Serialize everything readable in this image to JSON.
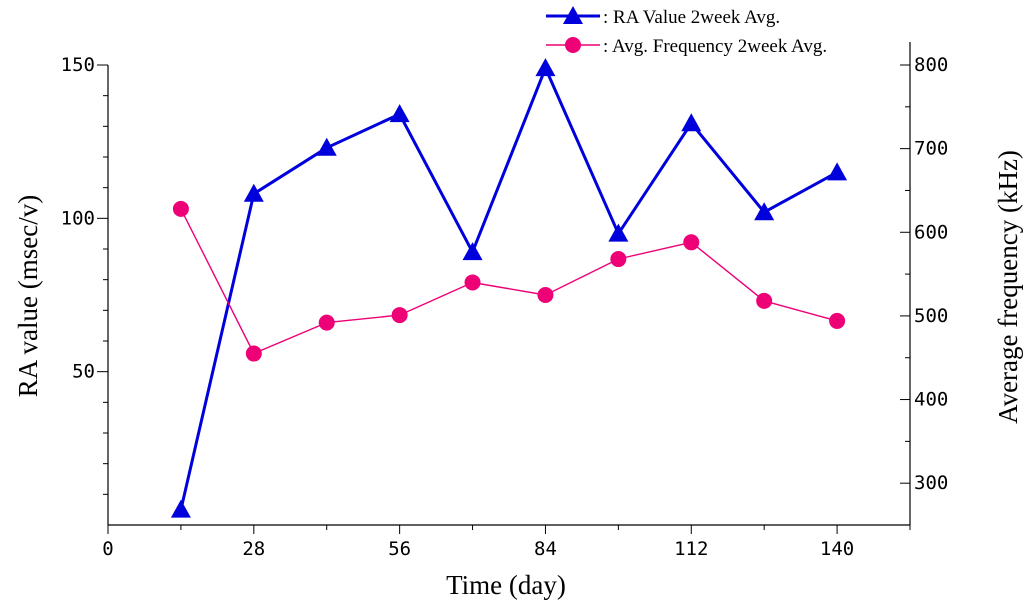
{
  "chart_data": {
    "type": "line",
    "x_label": "Time (day)",
    "y_left_label": "RA value (msec/v)",
    "y_right_label": "Average frequency (kHz)",
    "x_ticks": [
      "0",
      "28",
      "56",
      "84",
      "112",
      "140"
    ],
    "y_left_ticks": [
      "50",
      "100",
      "150"
    ],
    "y_right_ticks": [
      "300",
      "400",
      "500",
      "600",
      "700",
      "800"
    ],
    "xlim": [
      0,
      154
    ],
    "y_left_lim": [
      0,
      150
    ],
    "y_right_lim": [
      250,
      800
    ],
    "series": [
      {
        "name": ": RA Value 2week Avg.",
        "axis": "left",
        "marker": "triangle",
        "color": "#0000dd",
        "x": [
          14,
          28,
          42,
          56,
          70,
          84,
          98,
          112,
          126,
          140
        ],
        "y": [
          5,
          108,
          123,
          134,
          89,
          149,
          95,
          131,
          102,
          115
        ]
      },
      {
        "name": ": Avg. Frequency  2week Avg.",
        "axis": "right",
        "marker": "circle",
        "color": "#ee0077",
        "x": [
          14,
          28,
          42,
          56,
          70,
          84,
          98,
          112,
          126,
          140
        ],
        "y": [
          628,
          455,
          492,
          501,
          540,
          525,
          568,
          588,
          518,
          494
        ]
      }
    ],
    "legend_position": "top-right",
    "grid": false
  }
}
